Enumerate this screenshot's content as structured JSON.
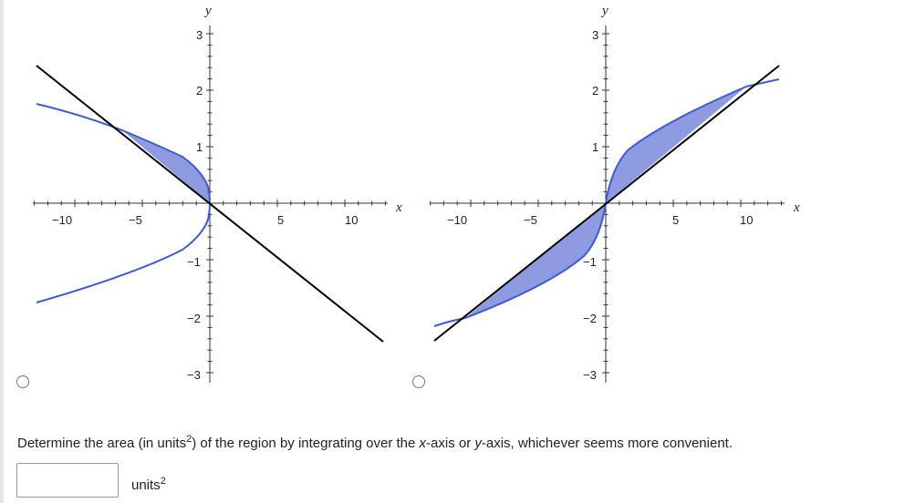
{
  "graph_left": {
    "y_axis_label": "y",
    "x_axis_label": "x",
    "x_tick_labels": [
      "−10",
      "−5",
      "5",
      "10"
    ],
    "y_tick_labels": [
      "3",
      "2",
      "1",
      "−1",
      "−2",
      "−3"
    ]
  },
  "graph_right": {
    "y_axis_label": "y",
    "x_axis_label": "x",
    "x_tick_labels": [
      "−10",
      "−5",
      "5",
      "10"
    ],
    "y_tick_labels": [
      "3",
      "2",
      "1",
      "−1",
      "−2",
      "−3"
    ]
  },
  "colors": {
    "curve": "#3f5bd0",
    "fill": "#8e9be0",
    "line": "#000000"
  },
  "question": {
    "text_before": "Determine the area (in units",
    "exponent": "2",
    "text_mid1": ") of the region by integrating over the ",
    "x_var": "x",
    "text_mid2": "-axis or ",
    "y_var": "y",
    "text_after": "-axis, whichever seems more convenient."
  },
  "answer": {
    "value": "",
    "units_label": "units",
    "units_exponent": "2"
  }
}
